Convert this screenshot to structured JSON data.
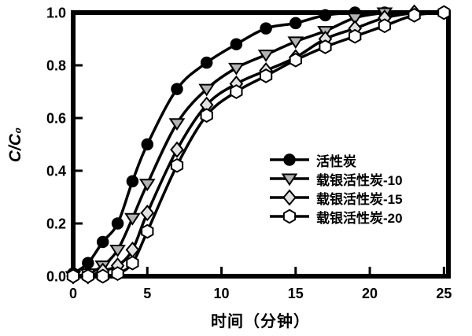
{
  "figure": {
    "background": "#ffffff",
    "frame_color": "#000000"
  },
  "chart_data": {
    "type": "line",
    "title": "",
    "xlabel": "时间（分钟）",
    "ylabel": "C/C₀",
    "axes": {
      "xlim": [
        0,
        25.3
      ],
      "ylim": [
        0,
        1.0
      ],
      "x_ticks": [
        0,
        5,
        10,
        15,
        20,
        25
      ],
      "x_tick_labels": [
        "0",
        "5",
        "10",
        "15",
        "20",
        "25"
      ],
      "y_ticks": [
        0.0,
        0.2,
        0.4,
        0.6,
        0.8,
        1.0
      ],
      "y_tick_labels": [
        "0.0",
        "0.2",
        "0.4",
        "0.6",
        "0.8",
        "1.0"
      ],
      "grid": false,
      "frame": "full-box",
      "tick_direction": "in"
    },
    "legend": {
      "position": "inside-center-right",
      "border": false
    },
    "colors": {
      "line": "#000000",
      "circle_fill": "#000000",
      "triangle_fill": "#b3b3b3",
      "diamond_fill": "#e2e2e2",
      "hexagon_fill": "#ffffff",
      "marker_edge": "#000000"
    },
    "series": [
      {
        "name": "活性炭",
        "marker": "circle",
        "x": [
          0,
          1,
          2,
          3,
          4,
          5,
          7,
          9,
          11,
          13,
          15,
          17,
          19,
          21
        ],
        "y": [
          0.01,
          0.05,
          0.13,
          0.2,
          0.36,
          0.5,
          0.71,
          0.81,
          0.88,
          0.94,
          0.96,
          0.99,
          1.0,
          1.0
        ]
      },
      {
        "name": "载银活性炭-10",
        "marker": "triangle-down",
        "x": [
          0,
          1,
          2,
          3,
          4,
          5,
          7,
          9,
          11,
          13,
          15,
          17,
          19,
          21
        ],
        "y": [
          0.0,
          0.01,
          0.04,
          0.1,
          0.22,
          0.35,
          0.58,
          0.71,
          0.79,
          0.84,
          0.89,
          0.93,
          0.98,
          1.0
        ]
      },
      {
        "name": "载银活性炭-15",
        "marker": "diamond",
        "x": [
          0,
          1,
          2,
          3,
          4,
          5,
          7,
          9,
          11,
          13,
          15,
          17,
          19,
          21,
          23
        ],
        "y": [
          0.0,
          0.0,
          0.02,
          0.04,
          0.1,
          0.24,
          0.48,
          0.65,
          0.73,
          0.78,
          0.83,
          0.9,
          0.94,
          0.98,
          1.0
        ]
      },
      {
        "name": "载银活性炭-20",
        "marker": "hexagon",
        "x": [
          0,
          1,
          2,
          3,
          4,
          5,
          7,
          9,
          11,
          13,
          15,
          17,
          19,
          21,
          23,
          25
        ],
        "y": [
          0.0,
          0.0,
          0.0,
          0.01,
          0.05,
          0.17,
          0.42,
          0.61,
          0.7,
          0.76,
          0.82,
          0.87,
          0.91,
          0.95,
          0.99,
          1.0
        ]
      }
    ]
  }
}
